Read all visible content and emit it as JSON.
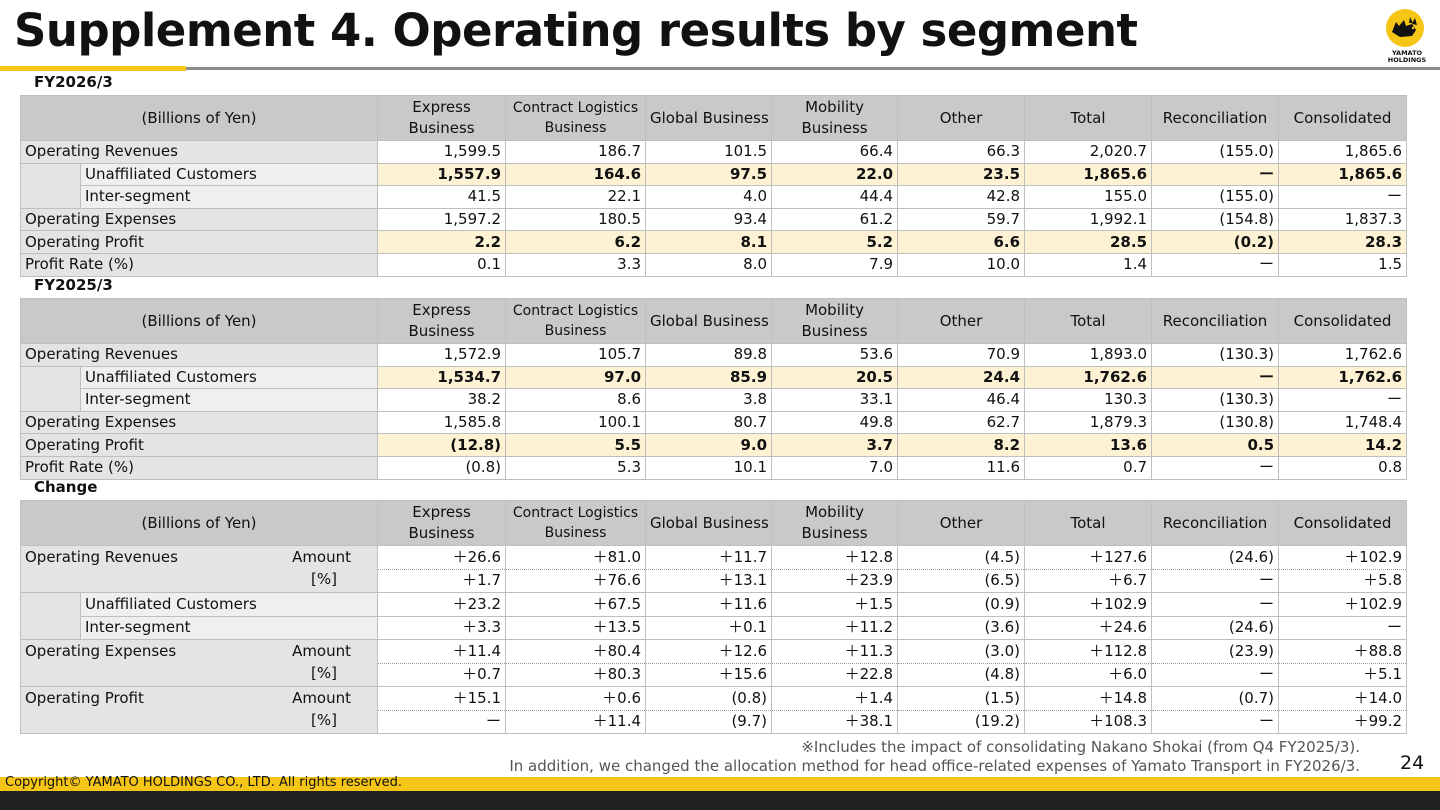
{
  "title": "Supplement 4. Operating results by segment",
  "logo": {
    "line1": "YAMATO",
    "line2": "HOLDINGS"
  },
  "headers": {
    "corner": "(Billions of Yen)",
    "columns": [
      "Express Business",
      "Contract Logistics Business",
      "Global Business",
      "Mobility Business",
      "Other",
      "Total",
      "Reconciliation",
      "Consolidated"
    ]
  },
  "fy2026": {
    "label": "FY2026/3",
    "rows": [
      {
        "label": "Operating Revenues",
        "values": [
          "1,599.5",
          "186.7",
          "101.5",
          "66.4",
          "66.3",
          "2,020.7",
          "(155.0)",
          "1,865.6"
        ]
      },
      {
        "label": "Unaffiliated Customers",
        "values": [
          "1,557.9",
          "164.6",
          "97.5",
          "22.0",
          "23.5",
          "1,865.6",
          "ー",
          "1,865.6"
        ]
      },
      {
        "label": "Inter-segment",
        "values": [
          "41.5",
          "22.1",
          "4.0",
          "44.4",
          "42.8",
          "155.0",
          "(155.0)",
          "ー"
        ]
      },
      {
        "label": "Operating Expenses",
        "values": [
          "1,597.2",
          "180.5",
          "93.4",
          "61.2",
          "59.7",
          "1,992.1",
          "(154.8)",
          "1,837.3"
        ]
      },
      {
        "label": "Operating Profit",
        "values": [
          "2.2",
          "6.2",
          "8.1",
          "5.2",
          "6.6",
          "28.5",
          "(0.2)",
          "28.3"
        ]
      },
      {
        "label": "Profit Rate (%)",
        "values": [
          "0.1",
          "3.3",
          "8.0",
          "7.9",
          "10.0",
          "1.4",
          "ー",
          "1.5"
        ]
      }
    ]
  },
  "fy2025": {
    "label": "FY2025/3",
    "rows": [
      {
        "label": "Operating Revenues",
        "values": [
          "1,572.9",
          "105.7",
          "89.8",
          "53.6",
          "70.9",
          "1,893.0",
          "(130.3)",
          "1,762.6"
        ]
      },
      {
        "label": "Unaffiliated Customers",
        "values": [
          "1,534.7",
          "97.0",
          "85.9",
          "20.5",
          "24.4",
          "1,762.6",
          "ー",
          "1,762.6"
        ]
      },
      {
        "label": "Inter-segment",
        "values": [
          "38.2",
          "8.6",
          "3.8",
          "33.1",
          "46.4",
          "130.3",
          "(130.3)",
          "ー"
        ]
      },
      {
        "label": "Operating Expenses",
        "values": [
          "1,585.8",
          "100.1",
          "80.7",
          "49.8",
          "62.7",
          "1,879.3",
          "(130.8)",
          "1,748.4"
        ]
      },
      {
        "label": "Operating Profit",
        "values": [
          "(12.8)",
          "5.5",
          "9.0",
          "3.7",
          "8.2",
          "13.6",
          "0.5",
          "14.2"
        ]
      },
      {
        "label": "Profit Rate (%)",
        "values": [
          "(0.8)",
          "5.3",
          "10.1",
          "7.0",
          "11.6",
          "0.7",
          "ー",
          "0.8"
        ]
      }
    ]
  },
  "change": {
    "label": "Change",
    "amount_label": "Amount",
    "pct_label": "[%]",
    "revenues": {
      "label": "Operating Revenues",
      "amount": [
        "＋26.6",
        "＋81.0",
        "＋11.7",
        "＋12.8",
        "(4.5)",
        "＋127.6",
        "(24.6)",
        "＋102.9"
      ],
      "pct": [
        "＋1.7",
        "＋76.6",
        "＋13.1",
        "＋23.9",
        "(6.5)",
        "＋6.7",
        "ー",
        "＋5.8"
      ]
    },
    "unaffiliated": {
      "label": "Unaffiliated Customers",
      "values": [
        "＋23.2",
        "＋67.5",
        "＋11.6",
        "＋1.5",
        "(0.9)",
        "＋102.9",
        "ー",
        "＋102.9"
      ]
    },
    "inter": {
      "label": "Inter-segment",
      "values": [
        "＋3.3",
        "＋13.5",
        "＋0.1",
        "＋11.2",
        "(3.6)",
        "＋24.6",
        "(24.6)",
        "ー"
      ]
    },
    "expenses": {
      "label": "Operating Expenses",
      "amount": [
        "＋11.4",
        "＋80.4",
        "＋12.6",
        "＋11.3",
        "(3.0)",
        "＋112.8",
        "(23.9)",
        "＋88.8"
      ],
      "pct": [
        "＋0.7",
        "＋80.3",
        "＋15.6",
        "＋22.8",
        "(4.8)",
        "＋6.0",
        "ー",
        "＋5.1"
      ]
    },
    "profit": {
      "label": "Operating Profit",
      "amount": [
        "＋15.1",
        "＋0.6",
        "(0.8)",
        "＋1.4",
        "(1.5)",
        "＋14.8",
        "(0.7)",
        "＋14.0"
      ],
      "pct": [
        "ー",
        "＋11.4",
        "(9.7)",
        "＋38.1",
        "(19.2)",
        "＋108.3",
        "ー",
        "＋99.2"
      ]
    }
  },
  "footnote": {
    "line1": "※Includes the impact of consolidating Nakano Shokai (from Q4 FY2025/3).",
    "line2": "In addition, we changed the allocation method for head office-related expenses of Yamato Transport  in FY2026/3."
  },
  "page_number": "24",
  "copyright": "Copyright© YAMATO HOLDINGS CO., LTD. All rights reserved.",
  "colors": {
    "accent_yellow": "#f5c518",
    "header_gray": "#c9c9c9",
    "highlight": "#fdf2d4"
  }
}
